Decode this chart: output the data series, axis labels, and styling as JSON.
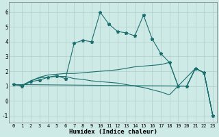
{
  "xlabel": "Humidex (Indice chaleur)",
  "ylabel": "",
  "background_color": "#ceeae6",
  "line_color": "#1a6e6e",
  "xlim": [
    -0.5,
    23.5
  ],
  "ylim": [
    -1.5,
    6.7
  ],
  "xticks": [
    0,
    1,
    2,
    3,
    4,
    5,
    6,
    7,
    8,
    9,
    10,
    11,
    12,
    13,
    14,
    15,
    16,
    17,
    18,
    19,
    20,
    21,
    22,
    23
  ],
  "yticks": [
    -1,
    0,
    1,
    2,
    3,
    4,
    5,
    6
  ],
  "series": [
    {
      "x": [
        0,
        1,
        2,
        3,
        4,
        5,
        6,
        7,
        8,
        9,
        10,
        11,
        12,
        13,
        14,
        15,
        16,
        17,
        18,
        19,
        20,
        21,
        22,
        23
      ],
      "y": [
        1.1,
        1.0,
        1.3,
        1.4,
        1.6,
        1.7,
        1.5,
        3.9,
        4.1,
        4.0,
        6.0,
        5.2,
        4.7,
        4.6,
        4.4,
        5.8,
        4.2,
        3.2,
        2.6,
        1.0,
        1.0,
        2.2,
        1.9,
        -1.0
      ],
      "marker": "*",
      "markersize": 3.5
    },
    {
      "x": [
        0,
        1,
        2,
        3,
        4,
        5,
        6,
        7,
        8,
        9,
        10,
        11,
        12,
        13,
        14,
        15,
        16,
        17,
        18,
        19,
        20,
        21,
        22,
        23
      ],
      "y": [
        1.1,
        1.05,
        1.35,
        1.6,
        1.75,
        1.8,
        1.85,
        1.85,
        1.9,
        1.95,
        2.0,
        2.05,
        2.1,
        2.2,
        2.3,
        2.35,
        2.4,
        2.45,
        2.6,
        1.0,
        1.0,
        2.2,
        1.9,
        -1.0
      ],
      "marker": null,
      "markersize": 0
    },
    {
      "x": [
        0,
        1,
        2,
        3,
        4,
        5,
        6,
        7,
        8,
        9,
        10,
        11,
        12,
        13,
        14,
        15,
        16,
        17,
        18,
        19,
        20,
        21,
        22,
        23
      ],
      "y": [
        1.1,
        1.05,
        1.35,
        1.55,
        1.6,
        1.65,
        1.65,
        1.5,
        1.45,
        1.35,
        1.3,
        1.25,
        1.2,
        1.1,
        1.0,
        0.9,
        0.75,
        0.6,
        0.4,
        1.0,
        1.0,
        2.2,
        1.9,
        -1.0
      ],
      "marker": null,
      "markersize": 0
    },
    {
      "x": [
        0,
        19,
        21,
        22,
        23
      ],
      "y": [
        1.1,
        1.0,
        2.2,
        1.9,
        -1.0
      ],
      "marker": null,
      "markersize": 0
    }
  ],
  "grid_color": "#b0ccc8",
  "grid_linewidth": 0.5,
  "line_width": 0.8
}
